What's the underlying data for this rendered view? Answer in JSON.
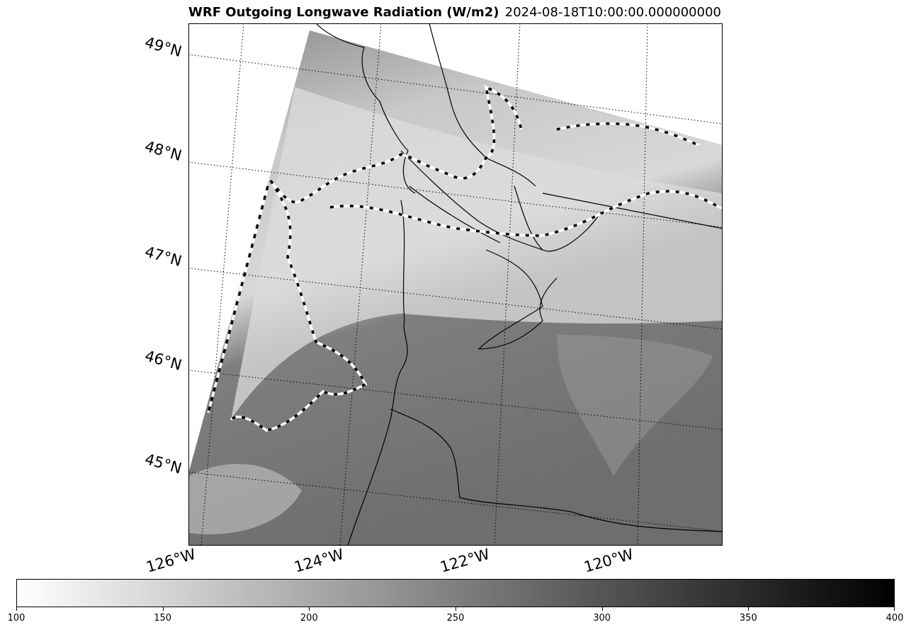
{
  "title": {
    "left": "WRF Outgoing Longwave Radiation (W/m2)",
    "right": "2024-08-18T10:00:00.000000000"
  },
  "map": {
    "latitude_labels": [
      "49°N",
      "48°N",
      "47°N",
      "46°N",
      "45°N"
    ],
    "longitude_labels": [
      "126°W",
      "124°W",
      "122°W",
      "120°W"
    ],
    "gridlines": "dotted",
    "colormap": "Greys"
  },
  "colorbar": {
    "min": 100,
    "max": 400,
    "ticks": [
      "100",
      "150",
      "200",
      "250",
      "300",
      "350",
      "400"
    ],
    "colors": {
      "low": "#ffffff",
      "high": "#000000"
    }
  }
}
